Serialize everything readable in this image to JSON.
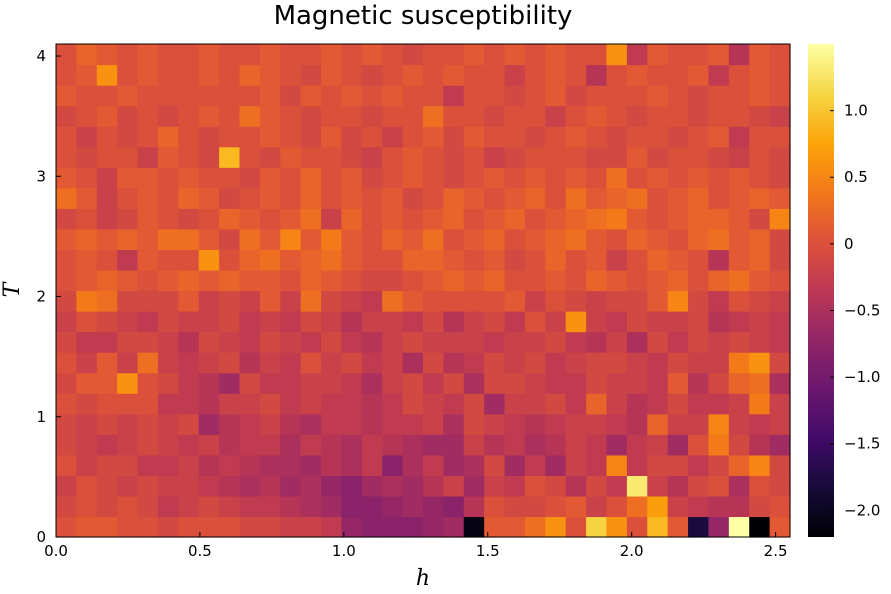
{
  "chart_data": {
    "type": "heatmap",
    "title": "Magnetic susceptibility",
    "xlabel": "h",
    "ylabel": "T",
    "xlim": [
      0,
      2.55
    ],
    "ylim": [
      0,
      4.1
    ],
    "x_ticks": [
      0.0,
      0.5,
      1.0,
      1.5,
      2.0,
      2.5
    ],
    "x_tick_labels": [
      "0.0",
      "0.5",
      "1.0",
      "1.5",
      "2.0",
      "2.5"
    ],
    "y_ticks": [
      0,
      1,
      2,
      3,
      4
    ],
    "y_tick_labels": [
      "0",
      "1",
      "2",
      "3",
      "4"
    ],
    "colorbar": {
      "colormap": "inferno",
      "range": [
        -2.2,
        1.5
      ],
      "ticks": [
        1.0,
        0.5,
        0,
        -0.5,
        -1.0,
        -1.5,
        -2.0
      ],
      "tick_labels": [
        "1.0",
        "0.5",
        "0",
        "−0.5",
        "−1.0",
        "−1.5",
        "−2.0"
      ]
    },
    "grid": false,
    "cols": 36,
    "rows": 24,
    "cell_w": 0.070833,
    "cell_h": 0.170833,
    "z": [
      [
        0.0,
        0.1,
        0.1,
        0.0,
        0.0,
        -0.1,
        0.0,
        0.0,
        0.0,
        -0.1,
        -0.1,
        -0.2,
        -0.2,
        -0.3,
        -0.7,
        -0.8,
        -0.8,
        -0.8,
        -0.7,
        -0.6,
        -2.1,
        0.1,
        0.1,
        0.3,
        0.6,
        0.0,
        1.1,
        0.6,
        0.0,
        0.9,
        0.1,
        -1.8,
        -0.7,
        1.5,
        -2.2,
        0.1
      ],
      [
        -0.1,
        0.0,
        -0.1,
        0.0,
        -0.1,
        -0.3,
        -0.2,
        -0.1,
        -0.2,
        -0.3,
        -0.3,
        -0.4,
        -0.5,
        -0.6,
        -0.8,
        -0.8,
        -0.7,
        -0.6,
        -0.7,
        -0.8,
        -0.4,
        0.0,
        -0.1,
        -0.1,
        0.0,
        0.1,
        -0.2,
        0.0,
        0.3,
        0.7,
        -0.2,
        -0.3,
        -0.4,
        -0.4,
        -0.1,
        0.0
      ],
      [
        -0.2,
        0.0,
        -0.1,
        -0.2,
        -0.1,
        -0.2,
        -0.2,
        -0.3,
        -0.4,
        -0.5,
        -0.4,
        -0.6,
        -0.5,
        -0.7,
        -0.8,
        -0.6,
        -0.5,
        -0.6,
        -0.4,
        -0.2,
        -0.6,
        -0.2,
        -0.3,
        0.0,
        -0.1,
        -0.4,
        -0.1,
        -0.3,
        1.3,
        -0.2,
        -0.4,
        -0.1,
        0.0,
        -0.5,
        0.0,
        -0.1
      ],
      [
        0.0,
        -0.2,
        -0.1,
        -0.1,
        -0.3,
        -0.3,
        -0.2,
        -0.4,
        -0.3,
        -0.4,
        -0.5,
        -0.5,
        -0.6,
        -0.4,
        -0.5,
        -0.3,
        -0.8,
        -0.5,
        -0.3,
        -0.6,
        -0.5,
        -0.1,
        -0.6,
        -0.3,
        -0.6,
        -0.2,
        -0.3,
        0.5,
        -0.3,
        -0.1,
        -0.1,
        -0.3,
        -0.1,
        0.2,
        0.5,
        -0.1
      ],
      [
        -0.1,
        -0.2,
        -0.3,
        -0.2,
        -0.1,
        -0.2,
        -0.3,
        -0.2,
        -0.4,
        -0.3,
        -0.3,
        -0.5,
        -0.3,
        -0.4,
        -0.5,
        -0.3,
        -0.4,
        -0.5,
        -0.6,
        -0.6,
        -0.2,
        -0.4,
        -0.3,
        -0.5,
        -0.4,
        -0.2,
        -0.3,
        -0.6,
        -0.3,
        -0.2,
        -0.6,
        0.0,
        0.4,
        -0.1,
        -0.4,
        -0.6
      ],
      [
        -0.1,
        -0.2,
        -0.1,
        -0.2,
        -0.1,
        -0.2,
        -0.1,
        -0.6,
        -0.4,
        -0.3,
        -0.2,
        -0.4,
        -0.5,
        -0.3,
        -0.3,
        -0.4,
        -0.3,
        -0.3,
        -0.2,
        -0.5,
        -0.1,
        -0.2,
        -0.3,
        -0.4,
        -0.3,
        -0.2,
        -0.2,
        -0.3,
        -0.4,
        0.2,
        -0.2,
        -0.2,
        0.5,
        -0.2,
        -0.3,
        -0.2
      ],
      [
        0.0,
        -0.1,
        0.0,
        0.0,
        0.0,
        -0.3,
        -0.3,
        -0.4,
        -0.2,
        -0.2,
        -0.1,
        -0.3,
        -0.2,
        -0.3,
        -0.3,
        -0.4,
        -0.3,
        -0.1,
        -0.2,
        -0.3,
        -0.1,
        -0.6,
        -0.2,
        -0.2,
        -0.1,
        -0.3,
        0.2,
        -0.2,
        -0.4,
        -0.3,
        -0.1,
        -0.3,
        -0.3,
        -0.2,
        0.4,
        -0.2
      ],
      [
        -0.1,
        0.1,
        0.1,
        0.6,
        0.0,
        -0.1,
        -0.3,
        -0.4,
        -0.6,
        -0.1,
        -0.3,
        -0.3,
        -0.2,
        -0.2,
        -0.3,
        -0.5,
        -0.2,
        -0.1,
        -0.3,
        -0.1,
        -0.5,
        -0.1,
        -0.1,
        -0.2,
        -0.3,
        -0.3,
        -0.1,
        -0.2,
        -0.2,
        -0.3,
        0.1,
        -0.4,
        -0.1,
        0.2,
        0.3,
        -0.5
      ],
      [
        0.0,
        -0.2,
        0.1,
        -0.2,
        0.3,
        -0.2,
        -0.3,
        -0.2,
        -0.1,
        -0.4,
        -0.2,
        -0.3,
        0.0,
        -0.2,
        -0.1,
        -0.3,
        -0.2,
        -0.5,
        -0.1,
        -0.4,
        -0.3,
        -0.1,
        -0.2,
        -0.1,
        -0.3,
        -0.2,
        -0.1,
        -0.1,
        -0.2,
        -0.3,
        -0.1,
        -0.2,
        -0.2,
        0.4,
        0.6,
        -0.1
      ],
      [
        -0.1,
        -0.3,
        -0.3,
        -0.1,
        -0.1,
        -0.2,
        -0.4,
        -0.1,
        -0.2,
        -0.3,
        -0.1,
        -0.2,
        -0.3,
        -0.1,
        -0.3,
        -0.4,
        -0.2,
        -0.1,
        -0.2,
        -0.2,
        -0.2,
        -0.3,
        -0.2,
        -0.2,
        -0.1,
        -0.3,
        -0.4,
        -0.2,
        -0.5,
        -0.1,
        -0.3,
        -0.1,
        -0.2,
        -0.1,
        -0.2,
        -0.3
      ],
      [
        -0.2,
        0.0,
        -0.1,
        -0.2,
        -0.3,
        -0.1,
        -0.2,
        -0.2,
        -0.1,
        -0.3,
        -0.2,
        -0.3,
        -0.1,
        -0.2,
        -0.4,
        -0.2,
        -0.2,
        -0.3,
        -0.1,
        -0.4,
        -0.2,
        -0.1,
        -0.3,
        0.0,
        -0.2,
        0.6,
        -0.2,
        -0.3,
        -0.1,
        -0.2,
        -0.2,
        -0.1,
        -0.4,
        -0.3,
        -0.2,
        -0.3
      ],
      [
        -0.1,
        0.4,
        0.3,
        -0.1,
        -0.1,
        -0.1,
        0.1,
        -0.2,
        -0.1,
        -0.2,
        0.1,
        -0.2,
        0.3,
        -0.1,
        -0.2,
        -0.3,
        0.3,
        0.1,
        0.0,
        0.0,
        0.0,
        0.0,
        0.1,
        -0.2,
        0.0,
        -0.1,
        -0.2,
        -0.1,
        -0.1,
        0.1,
        0.5,
        -0.1,
        -0.3,
        0.0,
        -0.1,
        -0.2
      ],
      [
        0.0,
        0.1,
        0.2,
        0.1,
        0.0,
        0.1,
        0.2,
        0.1,
        0.2,
        0.1,
        0.1,
        0.0,
        0.2,
        0.1,
        0.0,
        -0.1,
        -0.1,
        0.0,
        0.1,
        0.2,
        0.1,
        0.2,
        0.0,
        0.0,
        0.1,
        0.0,
        0.2,
        0.1,
        0.0,
        0.1,
        0.2,
        0.0,
        0.2,
        0.3,
        0.1,
        0.0
      ],
      [
        0.0,
        0.1,
        0.0,
        -0.3,
        0.1,
        0.0,
        0.0,
        0.6,
        0.0,
        0.2,
        0.3,
        0.1,
        0.2,
        0.3,
        0.1,
        0.0,
        0.0,
        0.2,
        0.2,
        0.1,
        0.0,
        0.1,
        -0.1,
        0.0,
        0.2,
        0.0,
        0.1,
        -0.2,
        0.0,
        0.2,
        0.1,
        0.0,
        -0.4,
        0.1,
        0.2,
        -0.1
      ],
      [
        0.1,
        0.2,
        0.1,
        0.2,
        0.1,
        0.3,
        0.3,
        0.1,
        -0.1,
        0.3,
        0.1,
        0.5,
        0.1,
        0.4,
        0.1,
        0.0,
        0.2,
        0.1,
        0.3,
        0.0,
        0.1,
        0.2,
        0.0,
        0.1,
        0.2,
        0.3,
        0.1,
        0.0,
        0.2,
        0.1,
        0.0,
        0.2,
        0.3,
        0.1,
        0.2,
        -0.1
      ],
      [
        -0.1,
        0.0,
        -0.2,
        -0.1,
        0.1,
        0.0,
        -0.1,
        0.0,
        0.2,
        0.1,
        0.0,
        0.1,
        0.3,
        -0.2,
        0.2,
        0.0,
        0.1,
        0.0,
        0.1,
        0.2,
        0.0,
        0.1,
        0.2,
        0.0,
        0.1,
        0.2,
        0.3,
        0.4,
        0.1,
        0.0,
        0.1,
        0.2,
        0.2,
        0.1,
        -0.1,
        0.5
      ],
      [
        0.3,
        0.1,
        -0.2,
        0.0,
        0.1,
        0.0,
        0.2,
        0.1,
        -0.1,
        0.0,
        0.1,
        0.0,
        0.2,
        0.0,
        0.1,
        0.0,
        0.1,
        -0.1,
        0.0,
        0.2,
        0.1,
        0.0,
        0.1,
        0.2,
        0.0,
        0.3,
        0.1,
        0.2,
        0.3,
        0.0,
        0.1,
        0.2,
        0.0,
        0.1,
        0.2,
        0.1
      ],
      [
        0.1,
        0.0,
        -0.2,
        0.1,
        0.1,
        0.0,
        0.1,
        0.0,
        0.0,
        -0.1,
        0.1,
        0.0,
        0.2,
        0.0,
        0.1,
        -0.1,
        0.0,
        0.1,
        0.0,
        -0.1,
        0.0,
        0.1,
        0.0,
        0.1,
        0.0,
        0.1,
        0.0,
        0.3,
        0.0,
        0.1,
        0.0,
        0.1,
        0.0,
        0.1,
        0.0,
        -0.1
      ],
      [
        0.0,
        -0.1,
        0.0,
        0.0,
        -0.2,
        0.1,
        0.0,
        -0.1,
        0.9,
        0.0,
        -0.1,
        0.1,
        0.0,
        0.0,
        -0.1,
        -0.2,
        0.0,
        0.1,
        0.0,
        -0.1,
        0.0,
        -0.2,
        -0.1,
        0.0,
        0.0,
        0.0,
        -0.1,
        -0.1,
        0.1,
        -0.1,
        0.0,
        0.0,
        -0.1,
        -0.2,
        0.0,
        -0.1
      ],
      [
        0.0,
        -0.2,
        0.0,
        -0.1,
        0.0,
        0.2,
        0.0,
        -0.1,
        0.0,
        0.0,
        0.1,
        0.0,
        -0.1,
        0.1,
        -0.1,
        0.0,
        -0.2,
        0.0,
        0.1,
        -0.1,
        0.1,
        0.0,
        0.0,
        -0.1,
        0.0,
        0.1,
        0.0,
        -0.1,
        0.0,
        0.0,
        -0.1,
        0.0,
        0.1,
        -0.3,
        0.0,
        0.0
      ],
      [
        -0.1,
        0.0,
        0.1,
        -0.1,
        0.0,
        -0.1,
        0.0,
        0.1,
        0.0,
        0.3,
        0.1,
        0.0,
        -0.1,
        0.0,
        0.0,
        -0.1,
        0.0,
        0.0,
        0.3,
        0.0,
        0.0,
        -0.1,
        0.0,
        0.0,
        -0.2,
        0.0,
        0.1,
        0.0,
        -0.1,
        0.0,
        0.0,
        -0.1,
        0.0,
        0.0,
        -0.1,
        -0.2
      ],
      [
        0.1,
        0.0,
        0.0,
        0.1,
        0.0,
        0.0,
        0.0,
        0.0,
        0.0,
        0.0,
        0.1,
        -0.1,
        0.1,
        0.0,
        0.1,
        0.0,
        0.1,
        0.0,
        0.0,
        -0.3,
        0.0,
        0.0,
        -0.1,
        0.0,
        0.1,
        -0.1,
        0.0,
        0.0,
        0.0,
        0.1,
        0.0,
        -0.1,
        0.0,
        0.0,
        0.1,
        0.0
      ],
      [
        0.0,
        0.1,
        0.6,
        0.0,
        0.1,
        0.0,
        0.0,
        0.1,
        0.0,
        0.2,
        0.1,
        0.0,
        -0.1,
        0.1,
        0.0,
        -0.1,
        0.0,
        0.1,
        0.0,
        0.1,
        0.0,
        0.0,
        -0.2,
        0.0,
        0.1,
        0.0,
        -0.4,
        0.0,
        0.1,
        0.0,
        0.0,
        0.1,
        -0.3,
        0.0,
        0.1,
        0.0
      ],
      [
        0.0,
        0.2,
        0.1,
        0.0,
        0.1,
        0.0,
        0.0,
        0.1,
        0.0,
        0.0,
        0.1,
        0.0,
        0.0,
        0.1,
        0.0,
        0.1,
        0.0,
        -0.1,
        0.0,
        0.0,
        0.1,
        0.0,
        0.1,
        0.0,
        0.1,
        0.0,
        0.0,
        0.6,
        -0.3,
        0.1,
        0.0,
        0.0,
        0.1,
        -0.4,
        0.1,
        0.0
      ]
    ]
  }
}
